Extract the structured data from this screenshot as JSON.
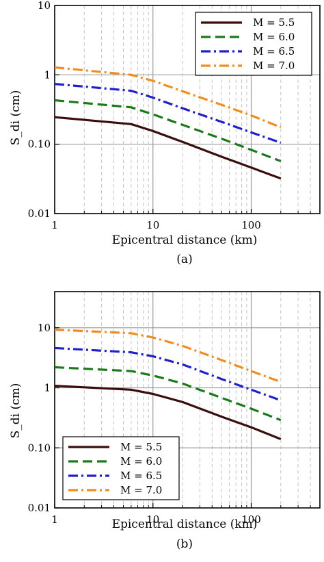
{
  "chart_data": [
    {
      "type": "line",
      "panel_label": "(a)",
      "xlabel": "Epicentral distance (km)",
      "ylabel": "S_di (cm)",
      "xscale": "log",
      "yscale": "log",
      "xlim": [
        1,
        500
      ],
      "ylim": [
        0.01,
        10
      ],
      "grid": true,
      "legend_position": "top-right",
      "x_ticks": [
        "1",
        "10",
        "100"
      ],
      "y_ticks": [
        "0.01",
        "0.10",
        "1",
        "10"
      ],
      "x": [
        1,
        6,
        10,
        20,
        50,
        100,
        200
      ],
      "series": [
        {
          "name": "M = 5.5",
          "color": "#3b0d0d",
          "dash": "solid",
          "values": [
            0.245,
            0.195,
            0.155,
            0.108,
            0.066,
            0.046,
            0.032
          ]
        },
        {
          "name": "M = 6.0",
          "color": "#1a7a1a",
          "dash": "dashed",
          "values": [
            0.43,
            0.34,
            0.27,
            0.19,
            0.12,
            0.083,
            0.057
          ]
        },
        {
          "name": "M = 6.5",
          "color": "#1f1fcc",
          "dash": "dashdot",
          "values": [
            0.74,
            0.59,
            0.47,
            0.33,
            0.21,
            0.148,
            0.105
          ]
        },
        {
          "name": "M = 7.0",
          "color": "#f28c1e",
          "dash": "dashdot",
          "values": [
            1.28,
            1.0,
            0.82,
            0.58,
            0.37,
            0.26,
            0.175
          ]
        }
      ]
    },
    {
      "type": "line",
      "panel_label": "(b)",
      "xlabel": "Epicentral distance (km)",
      "ylabel": "S_di (cm)",
      "xscale": "log",
      "yscale": "log",
      "xlim": [
        1,
        500
      ],
      "ylim": [
        0.01,
        40
      ],
      "grid": true,
      "legend_position": "bottom-left",
      "x_ticks": [
        "1",
        "10",
        "100"
      ],
      "y_ticks": [
        "0.01",
        "0.10",
        "1",
        "10"
      ],
      "x": [
        1,
        6,
        10,
        20,
        50,
        100,
        200
      ],
      "series": [
        {
          "name": "M = 5.5",
          "color": "#3b0d0d",
          "dash": "solid",
          "values": [
            1.08,
            0.93,
            0.79,
            0.58,
            0.33,
            0.22,
            0.14
          ]
        },
        {
          "name": "M = 6.0",
          "color": "#1a7a1a",
          "dash": "dashed",
          "values": [
            2.2,
            1.9,
            1.6,
            1.18,
            0.68,
            0.45,
            0.29
          ]
        },
        {
          "name": "M = 6.5",
          "color": "#1f1fcc",
          "dash": "dashdot",
          "values": [
            4.6,
            3.9,
            3.35,
            2.45,
            1.4,
            0.93,
            0.62
          ]
        },
        {
          "name": "M = 7.0",
          "color": "#f28c1e",
          "dash": "dashdot",
          "values": [
            9.3,
            8.1,
            6.9,
            5.0,
            2.9,
            1.9,
            1.25
          ]
        }
      ]
    }
  ]
}
